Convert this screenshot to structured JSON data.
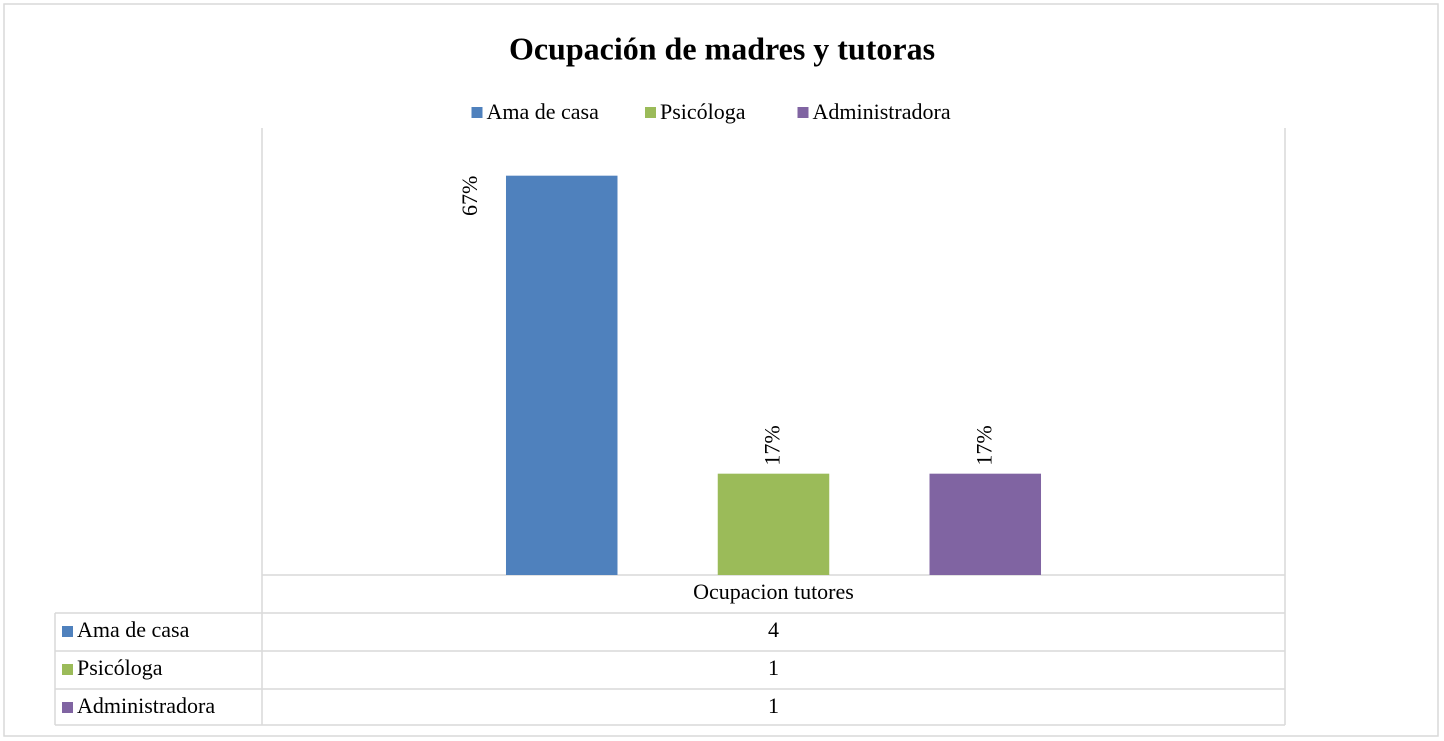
{
  "chart_data": {
    "type": "bar",
    "title": "Ocupación de madres y tutoras",
    "categories": [
      "Ocupacion tutores"
    ],
    "series": [
      {
        "name": "Ama de casa",
        "color": "#4f81bd",
        "values": [
          67
        ],
        "value_labels": [
          "67%"
        ],
        "table_values": [
          4
        ]
      },
      {
        "name": "Psicóloga",
        "color": "#9bbb59",
        "values": [
          17
        ],
        "value_labels": [
          "17%"
        ],
        "table_values": [
          1
        ]
      },
      {
        "name": "Administradora",
        "color": "#8064a2",
        "values": [
          17
        ],
        "value_labels": [
          "17%"
        ],
        "table_values": [
          1
        ]
      }
    ],
    "ylim": [
      0,
      75
    ],
    "legend": "top"
  }
}
